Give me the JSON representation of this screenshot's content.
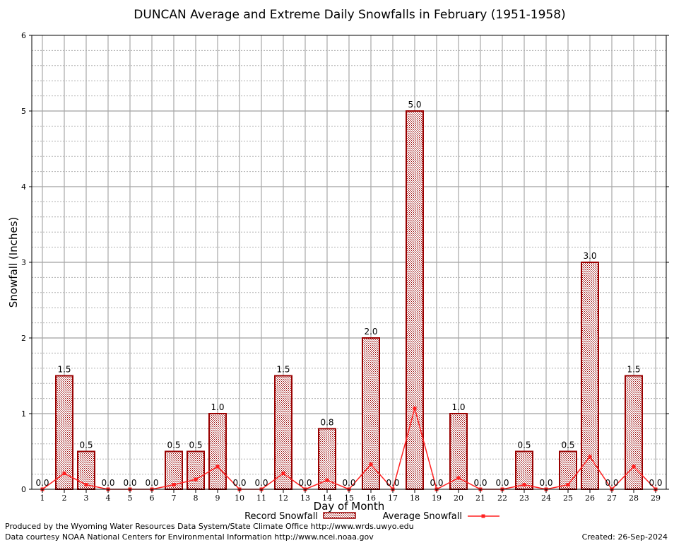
{
  "chart_data": {
    "type": "bar",
    "title": "DUNCAN Average and Extreme Daily Snowfalls in February (1951-1958)",
    "xlabel": "Day of Month",
    "ylabel": "Snowfall (Inches)",
    "ylim": [
      0,
      6
    ],
    "yticks": [
      "0",
      "1",
      "2",
      "3",
      "4",
      "5",
      "6"
    ],
    "categories": [
      "1",
      "2",
      "3",
      "4",
      "5",
      "6",
      "7",
      "8",
      "9",
      "10",
      "11",
      "12",
      "13",
      "14",
      "15",
      "16",
      "17",
      "18",
      "19",
      "20",
      "21",
      "22",
      "23",
      "24",
      "25",
      "26",
      "27",
      "28",
      "29"
    ],
    "grid": true,
    "legend_position": "bottom-center",
    "series": [
      {
        "name": "Record Snowfall",
        "kind": "bar",
        "color": "#990000",
        "values": [
          0.0,
          1.5,
          0.5,
          0.0,
          0.0,
          0.0,
          0.5,
          0.5,
          1.0,
          0.0,
          0.0,
          1.5,
          0.0,
          0.8,
          0.0,
          2.0,
          0.0,
          5.0,
          0.0,
          1.0,
          0.0,
          0.0,
          0.5,
          0.0,
          0.5,
          3.0,
          0.0,
          1.5,
          0.0
        ],
        "labels": [
          "0.0",
          "1.5",
          "0.5",
          "0.0",
          "0.0",
          "0.0",
          "0.5",
          "0.5",
          "1.0",
          "0.0",
          "0.0",
          "1.5",
          "0.0",
          "0.8",
          "0.0",
          "2.0",
          "0.0",
          "5.0",
          "0.0",
          "1.0",
          "0.0",
          "0.0",
          "0.5",
          "0.0",
          "0.5",
          "3.0",
          "0.0",
          "1.5",
          "0.0"
        ]
      },
      {
        "name": "Average Snowfall",
        "kind": "line",
        "color": "#ff2020",
        "values": [
          0.0,
          0.21,
          0.06,
          0.0,
          0.0,
          0.0,
          0.06,
          0.13,
          0.3,
          0.0,
          0.0,
          0.21,
          0.0,
          0.12,
          0.0,
          0.33,
          0.0,
          1.07,
          0.0,
          0.15,
          0.0,
          0.0,
          0.06,
          0.0,
          0.06,
          0.43,
          0.0,
          0.3,
          0.0
        ]
      }
    ]
  },
  "footer": {
    "credit_line1": "Produced by the Wyoming Water Resources Data System/State Climate Office http://www.wrds.uwyo.edu",
    "credit_line2": "Data courtesy NOAA National Centers for Environmental Information http://www.ncei.noaa.gov",
    "created": "Created:  26-Sep-2024"
  }
}
